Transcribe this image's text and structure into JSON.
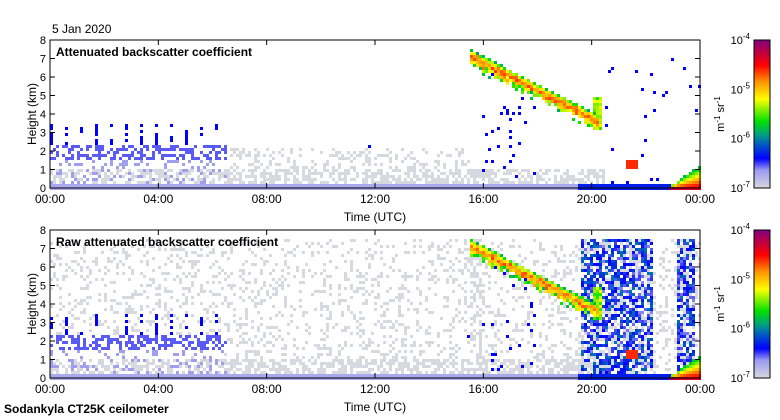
{
  "chart_data": [
    {
      "type": "heatmap",
      "title": "Attenuated backscatter coefficient",
      "date": "5 Jan 2020",
      "xlabel": "Time (UTC)",
      "ylabel": "Height (km)",
      "xlim": [
        0,
        24
      ],
      "ylim": [
        0,
        8
      ],
      "xticks": [
        "00:00",
        "04:00",
        "08:00",
        "12:00",
        "16:00",
        "20:00",
        "00:00"
      ],
      "yticks": [
        "0",
        "1",
        "2",
        "3",
        "4",
        "5",
        "6",
        "7",
        "8"
      ],
      "colorbar": {
        "label": "m-1 sr-1",
        "scale": "log",
        "range": [
          1e-07,
          0.0001
        ],
        "ticks": [
          "-7",
          "-6",
          "-5",
          "-4"
        ]
      },
      "features": [
        {
          "name": "surface layer",
          "t": [
            0,
            24
          ],
          "h": [
            0,
            0.15
          ],
          "log10_beta": -6.75
        },
        {
          "name": "boundary-layer aerosol",
          "t": [
            0,
            20.5
          ],
          "h": [
            0,
            1.0
          ],
          "log10_beta": -7.0
        },
        {
          "name": "low cloud / aerosol",
          "t": [
            0,
            6.5
          ],
          "h": [
            1.5,
            2.4
          ],
          "log10_beta": -6.6
        },
        {
          "name": "descending cloud",
          "t": [
            15.5,
            20.3
          ],
          "h": [
            3.5,
            7.5
          ],
          "log10_beta": -5.3
        },
        {
          "name": "near-surface fog",
          "t": [
            22.8,
            24
          ],
          "h": [
            0,
            1.2
          ],
          "log10_beta": -4.8
        }
      ]
    },
    {
      "type": "heatmap",
      "title": "Raw attenuated backscatter coefficient",
      "xlabel": "Time (UTC)",
      "ylabel": "Height (km)",
      "xlim": [
        0,
        24
      ],
      "ylim": [
        0,
        8
      ],
      "xticks": [
        "00:00",
        "04:00",
        "08:00",
        "12:00",
        "16:00",
        "20:00",
        "00:00"
      ],
      "yticks": [
        "0",
        "1",
        "2",
        "3",
        "4",
        "5",
        "6",
        "7",
        "8"
      ],
      "colorbar": {
        "label": "m-1 sr-1",
        "scale": "log",
        "range": [
          1e-07,
          0.0001
        ],
        "ticks": [
          "-7",
          "-6",
          "-5",
          "-4"
        ]
      },
      "features": [
        {
          "name": "background noise",
          "t": [
            0,
            24
          ],
          "h": [
            0,
            7.5
          ],
          "log10_beta": -7.0
        },
        {
          "name": "noise band",
          "t": [
            19.6,
            22.3
          ],
          "h": [
            0,
            7.5
          ],
          "log10_beta": -6.5
        },
        {
          "name": "descending cloud",
          "t": [
            15.5,
            20.3
          ],
          "h": [
            3.5,
            7.5
          ],
          "log10_beta": -5.3
        }
      ]
    }
  ],
  "footer": "Sodankyla CT25K ceilometer"
}
